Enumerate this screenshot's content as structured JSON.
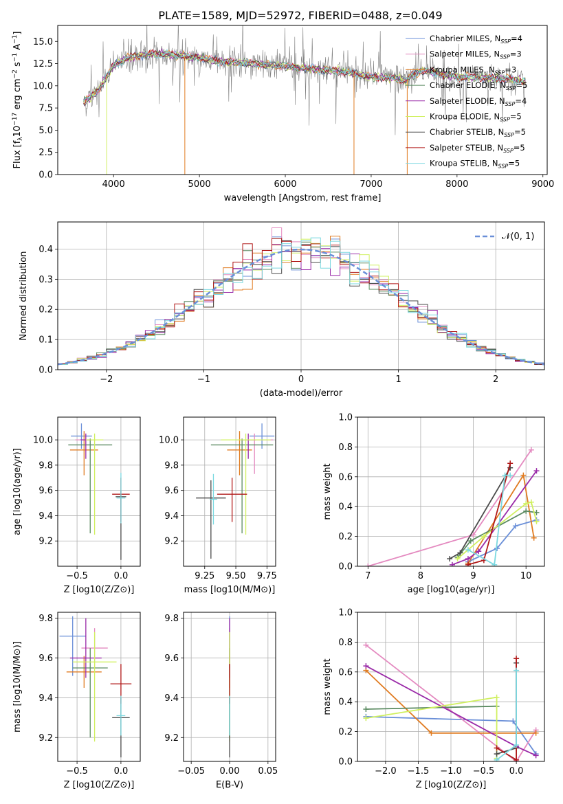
{
  "figure": {
    "title": "PLATE=1589, MJD=52972, FIBERID=0488, z=0.049",
    "series_colors": [
      "#6a8fd8",
      "#e48ac0",
      "#e07b20",
      "#5a8a60",
      "#9a2aa8",
      "#d0f060",
      "#4a4a4a",
      "#b01818",
      "#7ad8e0"
    ]
  },
  "chart_data": [
    {
      "type": "line",
      "panel": "spectrum",
      "title": "PLATE=1589, MJD=52972, FIBERID=0488, z=0.049",
      "xlabel": "wavelength [Angstrom, rest frame]",
      "ylabel": "Flux [f_λ 10^-17 erg cm^-2 s^-1 A^-1]",
      "xlim": [
        3350,
        9050
      ],
      "ylim": [
        0,
        16.8
      ],
      "xticks": [
        4000,
        5000,
        6000,
        7000,
        8000,
        9000
      ],
      "yticks": [
        0.0,
        2.5,
        5.0,
        7.5,
        10.0,
        12.5,
        15.0
      ],
      "grid": false,
      "legend_position": "top-right",
      "continuum_x": [
        3650,
        3800,
        4000,
        4200,
        4500,
        4800,
        5000,
        5300,
        5600,
        6000,
        6300,
        6600,
        7000,
        7200,
        7400,
        7600,
        7800,
        8000,
        8300,
        8600,
        8800
      ],
      "continuum_y": [
        8.2,
        9.2,
        12.3,
        13.3,
        13.6,
        13.4,
        13.1,
        12.7,
        12.5,
        12.2,
        11.9,
        11.7,
        11.0,
        10.9,
        10.6,
        11.8,
        11.3,
        11.0,
        10.9,
        10.7,
        10.5
      ],
      "series": [
        {
          "name": "Chabrier MILES, N_SSP=4",
          "label_main": "Chabrier MILES, N",
          "label_sub": "SSP",
          "label_tail": "=4"
        },
        {
          "name": "Salpeter MILES, N_SSP=3",
          "label_main": "Salpeter MILES, N",
          "label_sub": "SSP",
          "label_tail": "=3"
        },
        {
          "name": "Kroupa MILES, N_SSP=3",
          "label_main": "Kroupa MILES, N",
          "label_sub": "SSP",
          "label_tail": "=3"
        },
        {
          "name": "Chabrier ELODIE, N_SSP=5",
          "label_main": "Chabrier ELODIE, N",
          "label_sub": "SSP",
          "label_tail": "=5"
        },
        {
          "name": "Salpeter ELODIE, N_SSP=4",
          "label_main": "Salpeter ELODIE, N",
          "label_sub": "SSP",
          "label_tail": "=4"
        },
        {
          "name": "Kroupa ELODIE, N_SSP=5",
          "label_main": "Kroupa ELODIE, N",
          "label_sub": "SSP",
          "label_tail": "=5"
        },
        {
          "name": "Chabrier STELIB, N_SSP=5",
          "label_main": "Chabrier STELIB, N",
          "label_sub": "SSP",
          "label_tail": "=5"
        },
        {
          "name": "Salpeter STELIB, N_SSP=5",
          "label_main": "Salpeter STELIB, N",
          "label_sub": "SSP",
          "label_tail": "=5"
        },
        {
          "name": "Kroupa STELIB, N_SSP=5",
          "label_main": "Kroupa STELIB, N",
          "label_sub": "SSP",
          "label_tail": "=5"
        }
      ],
      "drop_lines": [
        {
          "x": 3920,
          "series": 5
        },
        {
          "x": 4830,
          "series": 2
        },
        {
          "x": 6800,
          "series": 2
        },
        {
          "x": 7420,
          "series": 2
        }
      ]
    },
    {
      "type": "line",
      "panel": "residual_histogram",
      "xlabel": "(data-model)/error",
      "ylabel": "Normed distribution",
      "xlim": [
        -2.5,
        2.5
      ],
      "ylim": [
        0,
        0.49
      ],
      "xticks": [
        -2,
        -1,
        0,
        1,
        2
      ],
      "xtick_labels": [
        "−2",
        "−1",
        "0",
        "1",
        "2"
      ],
      "yticks": [
        0.0,
        0.1,
        0.2,
        0.3,
        0.4
      ],
      "grid": true,
      "legend_position": "top-right",
      "reference_curve": {
        "name": "N(0,1)",
        "label": "𝒩(0, 1)",
        "style": "dashed",
        "color": "#6a8fd8"
      },
      "bin_width": 0.1
    },
    {
      "type": "scatter",
      "panel": "age_vs_Z_errorbars",
      "xlabel": "Z [log10(Z/Z⊙)]",
      "ylabel": "age [log10(age/yr)]",
      "xlim": [
        -0.72,
        0.22
      ],
      "ylim": [
        9.0,
        10.18
      ],
      "xticks": [
        -0.5,
        0.0
      ],
      "xtick_labels": [
        "−0.5",
        "0.0"
      ],
      "yticks": [
        9.2,
        9.4,
        9.6,
        9.8,
        10.0
      ],
      "grid": true,
      "points": [
        {
          "x": -0.45,
          "y": 10.03,
          "xerr": 0.12,
          "yerr_lo": 0.1,
          "yerr_hi": 0.1,
          "series": 0
        },
        {
          "x": -0.4,
          "y": 10.0,
          "xerr": 0.12,
          "yerr_lo": 0.05,
          "yerr_hi": 0.05,
          "series": 1
        },
        {
          "x": -0.42,
          "y": 9.92,
          "xerr": 0.16,
          "yerr_lo": 0.2,
          "yerr_hi": 0.15,
          "series": 2
        },
        {
          "x": -0.35,
          "y": 9.96,
          "xerr": 0.25,
          "yerr_lo": 0.7,
          "yerr_hi": 0.05,
          "series": 3
        },
        {
          "x": -0.4,
          "y": 10.0,
          "xerr": 0.06,
          "yerr_lo": 0.15,
          "yerr_hi": 0.05,
          "series": 4
        },
        {
          "x": -0.3,
          "y": 10.0,
          "xerr": 0.1,
          "yerr_lo": 0.75,
          "yerr_hi": 0.05,
          "series": 5
        },
        {
          "x": 0.0,
          "y": 9.55,
          "xerr": 0.06,
          "yerr_lo": 0.5,
          "yerr_hi": 0.05,
          "series": 6
        },
        {
          "x": 0.0,
          "y": 9.57,
          "xerr": 0.1,
          "yerr_lo": 0.22,
          "yerr_hi": 0.13,
          "series": 7
        },
        {
          "x": 0.0,
          "y": 9.54,
          "xerr": 0.05,
          "yerr_lo": 0.2,
          "yerr_hi": 0.2,
          "series": 8
        }
      ]
    },
    {
      "type": "scatter",
      "panel": "age_vs_mass_errorbars",
      "xlabel": "mass [log10(M/M⊙)]",
      "xlim": [
        9.08,
        9.82
      ],
      "ylim": [
        9.0,
        10.18
      ],
      "xticks": [
        9.25,
        9.5,
        9.75
      ],
      "xtick_labels": [
        "9.25",
        "9.50",
        "9.75"
      ],
      "yticks": [
        9.2,
        9.4,
        9.6,
        9.8,
        10.0
      ],
      "grid": true,
      "points": [
        {
          "x": 9.71,
          "y": 10.03,
          "xerr": 0.1,
          "yerr_lo": 0.1,
          "yerr_hi": 0.1,
          "series": 0
        },
        {
          "x": 9.65,
          "y": 10.0,
          "xerr": 0.15,
          "yerr_lo": 0.27,
          "yerr_hi": 0.05,
          "series": 1
        },
        {
          "x": 9.53,
          "y": 9.92,
          "xerr": 0.1,
          "yerr_lo": 0.2,
          "yerr_hi": 0.15,
          "series": 2
        },
        {
          "x": 9.55,
          "y": 9.96,
          "xerr": 0.25,
          "yerr_lo": 0.7,
          "yerr_hi": 0.05,
          "series": 3
        },
        {
          "x": 9.6,
          "y": 10.0,
          "xerr": 0.06,
          "yerr_lo": 0.15,
          "yerr_hi": 0.05,
          "series": 4
        },
        {
          "x": 9.58,
          "y": 10.0,
          "xerr": 0.2,
          "yerr_lo": 0.75,
          "yerr_hi": 0.05,
          "series": 5
        },
        {
          "x": 9.3,
          "y": 9.54,
          "xerr": 0.12,
          "yerr_lo": 0.48,
          "yerr_hi": 0.14,
          "series": 6
        },
        {
          "x": 9.47,
          "y": 9.57,
          "xerr": 0.12,
          "yerr_lo": 0.22,
          "yerr_hi": 0.13,
          "series": 7
        },
        {
          "x": 9.32,
          "y": 9.53,
          "xerr": 0.03,
          "yerr_lo": 0.2,
          "yerr_hi": 0.2,
          "series": 8
        }
      ]
    },
    {
      "type": "line",
      "panel": "massweight_vs_age",
      "xlabel": "age [log10(age/yr)]",
      "ylabel": "mass weight",
      "xlim": [
        6.8,
        10.35
      ],
      "ylim": [
        0.0,
        1.0
      ],
      "xticks": [
        7,
        8,
        9,
        10
      ],
      "yticks": [
        0.0,
        0.2,
        0.4,
        0.6,
        0.8,
        1.0
      ],
      "grid": true,
      "series_points": [
        {
          "series": 0,
          "x": [
            8.9,
            9.45,
            9.8,
            10.2
          ],
          "y": [
            0.03,
            0.12,
            0.27,
            0.31
          ]
        },
        {
          "series": 1,
          "x": [
            7.0,
            9.0,
            10.1
          ],
          "y": [
            0.0,
            0.21,
            0.78
          ]
        },
        {
          "series": 2,
          "x": [
            8.9,
            9.95,
            10.15
          ],
          "y": [
            0.02,
            0.61,
            0.19
          ]
        },
        {
          "series": 3,
          "x": [
            8.7,
            8.95,
            10.0,
            10.2
          ],
          "y": [
            0.06,
            0.17,
            0.37,
            0.36
          ]
        },
        {
          "series": 4,
          "x": [
            8.6,
            8.9,
            9.1,
            10.2
          ],
          "y": [
            0.01,
            0.05,
            0.1,
            0.64
          ]
        },
        {
          "series": 5,
          "x": [
            8.7,
            9.2,
            10.0,
            10.1,
            10.2
          ],
          "y": [
            0.05,
            0.2,
            0.42,
            0.43,
            0.3
          ]
        },
        {
          "series": 6,
          "x": [
            8.55,
            8.75,
            9.7
          ],
          "y": [
            0.05,
            0.09,
            0.66
          ]
        },
        {
          "series": 7,
          "x": [
            8.9,
            9.2,
            9.7
          ],
          "y": [
            0.01,
            0.04,
            0.69
          ]
        },
        {
          "series": 8,
          "x": [
            8.9,
            9.4,
            9.6,
            9.7
          ],
          "y": [
            0.11,
            0.01,
            0.61,
            0.61
          ]
        }
      ]
    },
    {
      "type": "scatter",
      "panel": "mass_vs_Z_errorbars",
      "xlabel": "Z [log10(Z/Z⊙)]",
      "ylabel": "mass [log10(M/M⊙)]",
      "xlim": [
        -0.72,
        0.22
      ],
      "ylim": [
        9.08,
        9.83
      ],
      "xticks": [
        -0.5,
        0.0
      ],
      "xtick_labels": [
        "−0.5",
        "0.0"
      ],
      "yticks": [
        9.2,
        9.4,
        9.6,
        9.8
      ],
      "grid": true,
      "points": [
        {
          "x": -0.55,
          "y": 9.71,
          "xerr": 0.15,
          "yerr_lo": 0.2,
          "yerr_hi": 0.1,
          "series": 0
        },
        {
          "x": -0.3,
          "y": 9.65,
          "xerr": 0.15,
          "yerr_lo": 0.1,
          "yerr_hi": 0.1,
          "series": 1
        },
        {
          "x": -0.42,
          "y": 9.53,
          "xerr": 0.2,
          "yerr_lo": 0.08,
          "yerr_hi": 0.08,
          "series": 2
        },
        {
          "x": -0.35,
          "y": 9.55,
          "xerr": 0.2,
          "yerr_lo": 0.35,
          "yerr_hi": 0.1,
          "series": 3
        },
        {
          "x": -0.4,
          "y": 9.6,
          "xerr": 0.18,
          "yerr_lo": 0.1,
          "yerr_hi": 0.2,
          "series": 4
        },
        {
          "x": -0.3,
          "y": 9.58,
          "xerr": 0.25,
          "yerr_lo": 0.4,
          "yerr_hi": 0.15,
          "series": 5
        },
        {
          "x": 0.0,
          "y": 9.3,
          "xerr": 0.1,
          "yerr_lo": 0.2,
          "yerr_hi": 0.1,
          "series": 6
        },
        {
          "x": 0.0,
          "y": 9.47,
          "xerr": 0.12,
          "yerr_lo": 0.1,
          "yerr_hi": 0.1,
          "series": 7
        },
        {
          "x": 0.0,
          "y": 9.31,
          "xerr": 0.05,
          "yerr_lo": 0.1,
          "yerr_hi": 0.1,
          "series": 8
        }
      ]
    },
    {
      "type": "scatter",
      "panel": "mass_vs_EBV_errorbars",
      "xlabel": "E(B-V)",
      "xlim": [
        -0.06,
        0.06
      ],
      "ylim": [
        9.08,
        9.83
      ],
      "xticks": [
        -0.05,
        0.0,
        0.05
      ],
      "xtick_labels": [
        "−0.05",
        "0.00",
        "0.05"
      ],
      "yticks": [
        9.2,
        9.4,
        9.6,
        9.8
      ],
      "grid": true,
      "points": [
        {
          "x": 0.0,
          "y": 9.71,
          "yerr_lo": 0.1,
          "yerr_hi": 0.1,
          "series": 0
        },
        {
          "x": 0.0,
          "y": 9.65,
          "yerr_lo": 0.1,
          "yerr_hi": 0.1,
          "series": 1
        },
        {
          "x": 0.0,
          "y": 9.53,
          "yerr_lo": 0.08,
          "yerr_hi": 0.08,
          "series": 2
        },
        {
          "x": 0.0,
          "y": 9.55,
          "yerr_lo": 0.35,
          "yerr_hi": 0.1,
          "series": 3
        },
        {
          "x": 0.0,
          "y": 9.6,
          "yerr_lo": 0.1,
          "yerr_hi": 0.2,
          "series": 4
        },
        {
          "x": 0.0,
          "y": 9.58,
          "yerr_lo": 0.4,
          "yerr_hi": 0.15,
          "series": 5
        },
        {
          "x": 0.0,
          "y": 9.3,
          "yerr_lo": 0.2,
          "yerr_hi": 0.1,
          "series": 6
        },
        {
          "x": 0.0,
          "y": 9.47,
          "yerr_lo": 0.1,
          "yerr_hi": 0.1,
          "series": 7
        },
        {
          "x": 0.0,
          "y": 9.31,
          "yerr_lo": 0.1,
          "yerr_hi": 0.1,
          "series": 8
        }
      ]
    },
    {
      "type": "line",
      "panel": "massweight_vs_Z",
      "xlabel": "Z [log10(Z/Z⊙)]",
      "ylabel": "mass weight",
      "xlim": [
        -2.43,
        0.43
      ],
      "ylim": [
        0.0,
        1.0
      ],
      "xticks": [
        -2.0,
        -1.5,
        -1.0,
        -0.5,
        0.0
      ],
      "xtick_labels": [
        "−2.0",
        "−1.5",
        "−1.0",
        "−0.5",
        "0.0"
      ],
      "yticks": [
        0.0,
        0.2,
        0.4,
        0.6,
        0.8,
        1.0
      ],
      "grid": true,
      "series_points": [
        {
          "series": 0,
          "x": [
            -2.3,
            -0.05,
            0.3
          ],
          "y": [
            0.3,
            0.27,
            0.05
          ]
        },
        {
          "series": 1,
          "x": [
            -2.3,
            0.0,
            0.3
          ],
          "y": [
            0.78,
            0.0,
            0.21
          ]
        },
        {
          "series": 2,
          "x": [
            -2.3,
            -1.3,
            0.3
          ],
          "y": [
            0.61,
            0.19,
            0.19
          ]
        },
        {
          "series": 3,
          "x": [
            -2.3,
            -0.3
          ],
          "y": [
            0.35,
            0.37
          ]
        },
        {
          "series": 4,
          "x": [
            -2.3,
            0.0,
            0.3
          ],
          "y": [
            0.64,
            0.1,
            0.04
          ]
        },
        {
          "series": 5,
          "x": [
            -2.3,
            -0.3,
            -0.3
          ],
          "y": [
            0.29,
            0.43,
            0.02
          ]
        },
        {
          "series": 6,
          "x": [
            -0.3,
            0.0,
            0.0
          ],
          "y": [
            0.05,
            0.09,
            0.66
          ]
        },
        {
          "series": 7,
          "x": [
            -0.3,
            0.0,
            0.0
          ],
          "y": [
            0.09,
            0.01,
            0.69
          ]
        },
        {
          "series": 8,
          "x": [
            -0.3,
            0.0,
            0.0
          ],
          "y": [
            0.01,
            0.11,
            0.61
          ]
        }
      ]
    }
  ]
}
